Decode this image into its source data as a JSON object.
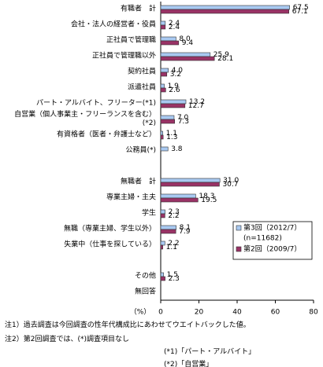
{
  "chart_data": {
    "type": "hbar",
    "categories": [
      "有職者　計",
      "会社・法人の経営者・役員",
      "正社員で管理職",
      "正社員で管理職以外",
      "契約社員",
      "派遣社員",
      "パート・アルバイト、フリーター(*1)",
      "自営業（個人事業主・フリーランスを含む）\n(*2)",
      "有資格者（医者・弁護士など）",
      "公務員(*)",
      null,
      "無職者　計",
      "専業主婦・主夫",
      "学生",
      "無職（専業主婦、学生以外）",
      "失業中（仕事を探している）",
      null,
      "その他",
      "無回答"
    ],
    "series": [
      {
        "name": "第3回（2012/7）",
        "color": "#a9c9f1",
        "values": [
          67.5,
          2.4,
          8.0,
          25.9,
          4.0,
          1.9,
          13.2,
          7.0,
          1.1,
          3.8,
          null,
          31.0,
          18.3,
          2.3,
          8.1,
          2.2,
          null,
          1.5,
          null
        ],
        "value_labels": [
          "67.5",
          "2.4",
          "8.0",
          "25.9",
          "4.0",
          "1.9",
          "13.2",
          "7.0",
          "1.1",
          "3.8",
          null,
          "31.0",
          "18.3",
          "2.3",
          "8.1",
          "2.2",
          null,
          "1.5",
          null
        ]
      },
      {
        "name": "第2回（2009/7）",
        "color": "#993366",
        "values": [
          67.1,
          2.4,
          9.4,
          28.1,
          3.2,
          2.6,
          12.7,
          7.3,
          1.3,
          null,
          null,
          30.7,
          19.5,
          2.2,
          7.9,
          1.1,
          null,
          2.3,
          null
        ],
        "value_labels": [
          "67.1",
          "2.4",
          "9.4",
          "28.1",
          "3.2",
          "2.6",
          "12.7",
          "7.3",
          "1.3",
          null,
          null,
          "30.7",
          "19.5",
          "2.2",
          "7.9",
          "1.1",
          null,
          "2.3",
          null
        ]
      }
    ],
    "legend_note": "(n=11682)",
    "x_label": "（%）",
    "xlim": [
      0,
      80
    ],
    "xticks": [
      0,
      20,
      40,
      60,
      80
    ],
    "notes": [
      "注1）過去調査は今回調査の性年代構成比にあわせてウエイトバックした値。",
      "注2）第2回調査では、(*)調査項目なし",
      "(*1)「パート・アルバイト」",
      "(*2)「自営業」"
    ]
  }
}
